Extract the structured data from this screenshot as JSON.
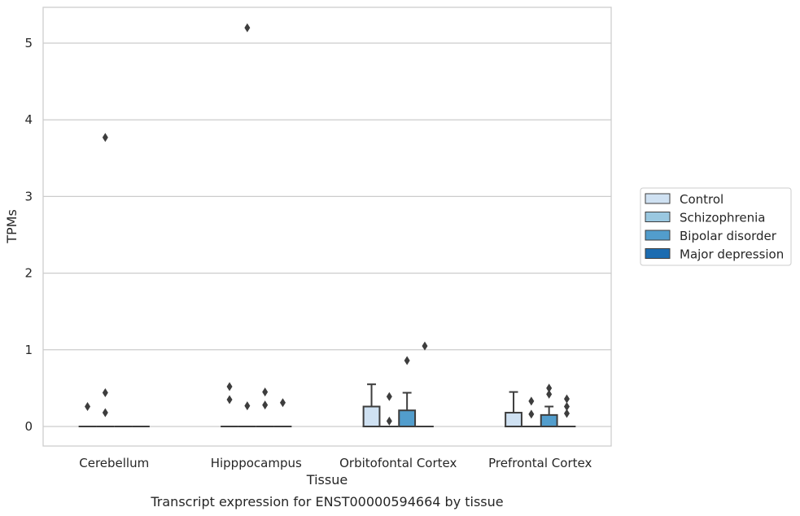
{
  "chart_data": {
    "type": "box",
    "title": "",
    "caption": "Transcript expression for ENST00000594664 by tissue",
    "xlabel": "Tissue",
    "ylabel": "TPMs",
    "ylim": [
      -0.25,
      5.5
    ],
    "yticks": [
      0,
      1,
      2,
      3,
      4,
      5
    ],
    "grid": true,
    "legend_position": "right",
    "categories": [
      "Cerebellum",
      "Hipppocampus",
      "Orbitofontal Cortex",
      "Prefrontal Cortex"
    ],
    "series": [
      {
        "name": "Control",
        "color": "#cfe1f2",
        "boxes": [
          {
            "q1": 0,
            "median": 0,
            "q3": 0,
            "whisker_low": 0,
            "whisker_high": 0,
            "outliers": [
              0.26
            ]
          },
          {
            "q1": 0,
            "median": 0,
            "q3": 0,
            "whisker_low": 0,
            "whisker_high": 0,
            "outliers": [
              0.52,
              0.35
            ]
          },
          {
            "q1": 0,
            "median": 0,
            "q3": 0.26,
            "whisker_low": 0,
            "whisker_high": 0.55,
            "outliers": []
          },
          {
            "q1": 0,
            "median": 0,
            "q3": 0.18,
            "whisker_low": 0,
            "whisker_high": 0.45,
            "outliers": []
          }
        ]
      },
      {
        "name": "Schizophrenia",
        "color": "#9ac8e0",
        "boxes": [
          {
            "q1": 0,
            "median": 0,
            "q3": 0,
            "whisker_low": 0,
            "whisker_high": 0,
            "outliers": [
              3.77,
              0.44,
              0.18
            ]
          },
          {
            "q1": 0,
            "median": 0,
            "q3": 0,
            "whisker_low": 0,
            "whisker_high": 0,
            "outliers": [
              5.2,
              0.27
            ]
          },
          {
            "q1": 0,
            "median": 0,
            "q3": 0,
            "whisker_low": 0,
            "whisker_high": 0,
            "outliers": [
              0.39,
              0.07
            ]
          },
          {
            "q1": 0,
            "median": 0,
            "q3": 0,
            "whisker_low": 0,
            "whisker_high": 0,
            "outliers": [
              0.33,
              0.16
            ]
          }
        ]
      },
      {
        "name": "Bipolar disorder",
        "color": "#529dcc",
        "boxes": [
          {
            "q1": 0,
            "median": 0,
            "q3": 0,
            "whisker_low": 0,
            "whisker_high": 0,
            "outliers": []
          },
          {
            "q1": 0,
            "median": 0,
            "q3": 0,
            "whisker_low": 0,
            "whisker_high": 0,
            "outliers": [
              0.45,
              0.28
            ]
          },
          {
            "q1": 0,
            "median": 0,
            "q3": 0.21,
            "whisker_low": 0,
            "whisker_high": 0.44,
            "outliers": [
              0.86
            ]
          },
          {
            "q1": 0,
            "median": 0,
            "q3": 0.15,
            "whisker_low": 0,
            "whisker_high": 0.26,
            "outliers": [
              0.5,
              0.42
            ]
          }
        ]
      },
      {
        "name": "Major depression",
        "color": "#1c6cb1",
        "boxes": [
          {
            "q1": 0,
            "median": 0,
            "q3": 0,
            "whisker_low": 0,
            "whisker_high": 0,
            "outliers": []
          },
          {
            "q1": 0,
            "median": 0,
            "q3": 0,
            "whisker_low": 0,
            "whisker_high": 0,
            "outliers": [
              0.31
            ]
          },
          {
            "q1": 0,
            "median": 0,
            "q3": 0,
            "whisker_low": 0,
            "whisker_high": 0,
            "outliers": [
              1.05
            ]
          },
          {
            "q1": 0,
            "median": 0,
            "q3": 0,
            "whisker_low": 0,
            "whisker_high": 0,
            "outliers": [
              0.36,
              0.26,
              0.17
            ]
          }
        ]
      }
    ]
  }
}
